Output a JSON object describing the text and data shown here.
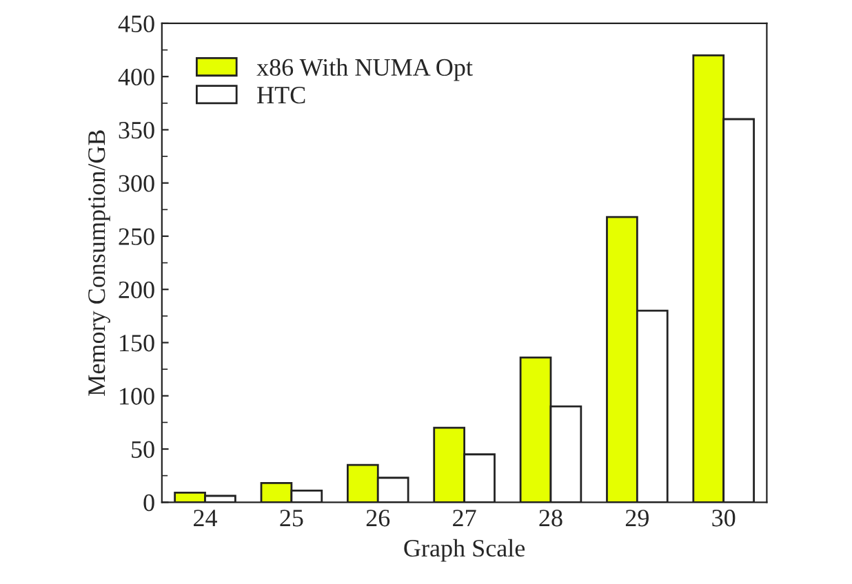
{
  "chart_data": {
    "type": "bar",
    "xlabel": "Graph Scale",
    "ylabel": "Memory Consumption/GB",
    "categories": [
      "24",
      "25",
      "26",
      "27",
      "28",
      "29",
      "30"
    ],
    "series": [
      {
        "name": "x86 With NUMA Opt",
        "color": "#e5ff00",
        "values": [
          9,
          18,
          35,
          70,
          136,
          268,
          420
        ]
      },
      {
        "name": "HTC",
        "color": "#ffffff",
        "values": [
          6,
          11,
          23,
          45,
          90,
          180,
          360
        ]
      }
    ],
    "ylim": [
      0,
      450
    ],
    "yticks": [
      0,
      50,
      100,
      150,
      200,
      250,
      300,
      350,
      400,
      450
    ],
    "grid": false,
    "legend": "top left"
  }
}
